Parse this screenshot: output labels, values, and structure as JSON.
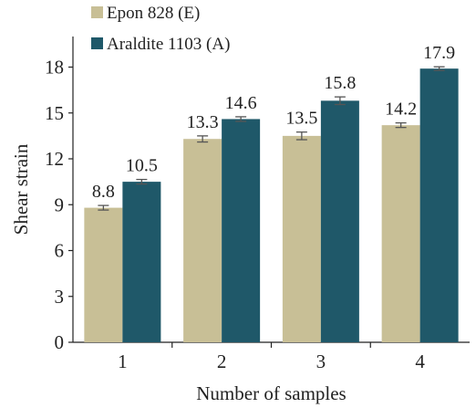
{
  "chart_data": {
    "type": "bar",
    "xlabel": "Number of samples",
    "ylabel": "Shear strain",
    "categories": [
      "1",
      "2",
      "3",
      "4"
    ],
    "ylim": [
      0,
      20
    ],
    "yticks": [
      0,
      3,
      6,
      9,
      12,
      15,
      18
    ],
    "series": [
      {
        "name": "Epon 828 (E)",
        "color": "#c8bf96",
        "values": [
          8.8,
          13.3,
          13.5,
          14.2
        ],
        "labels": [
          "8.8",
          "13.3",
          "13.5",
          "14.2"
        ],
        "errors": [
          0.15,
          0.2,
          0.25,
          0.15
        ]
      },
      {
        "name": "Araldite 1103 (A)",
        "color": "#1f5869",
        "values": [
          10.5,
          14.6,
          15.8,
          17.9
        ],
        "labels": [
          "10.5",
          "14.6",
          "15.8",
          "17.9"
        ],
        "errors": [
          0.15,
          0.15,
          0.25,
          0.12
        ]
      }
    ],
    "legend_position": "top-left",
    "grid": false
  }
}
